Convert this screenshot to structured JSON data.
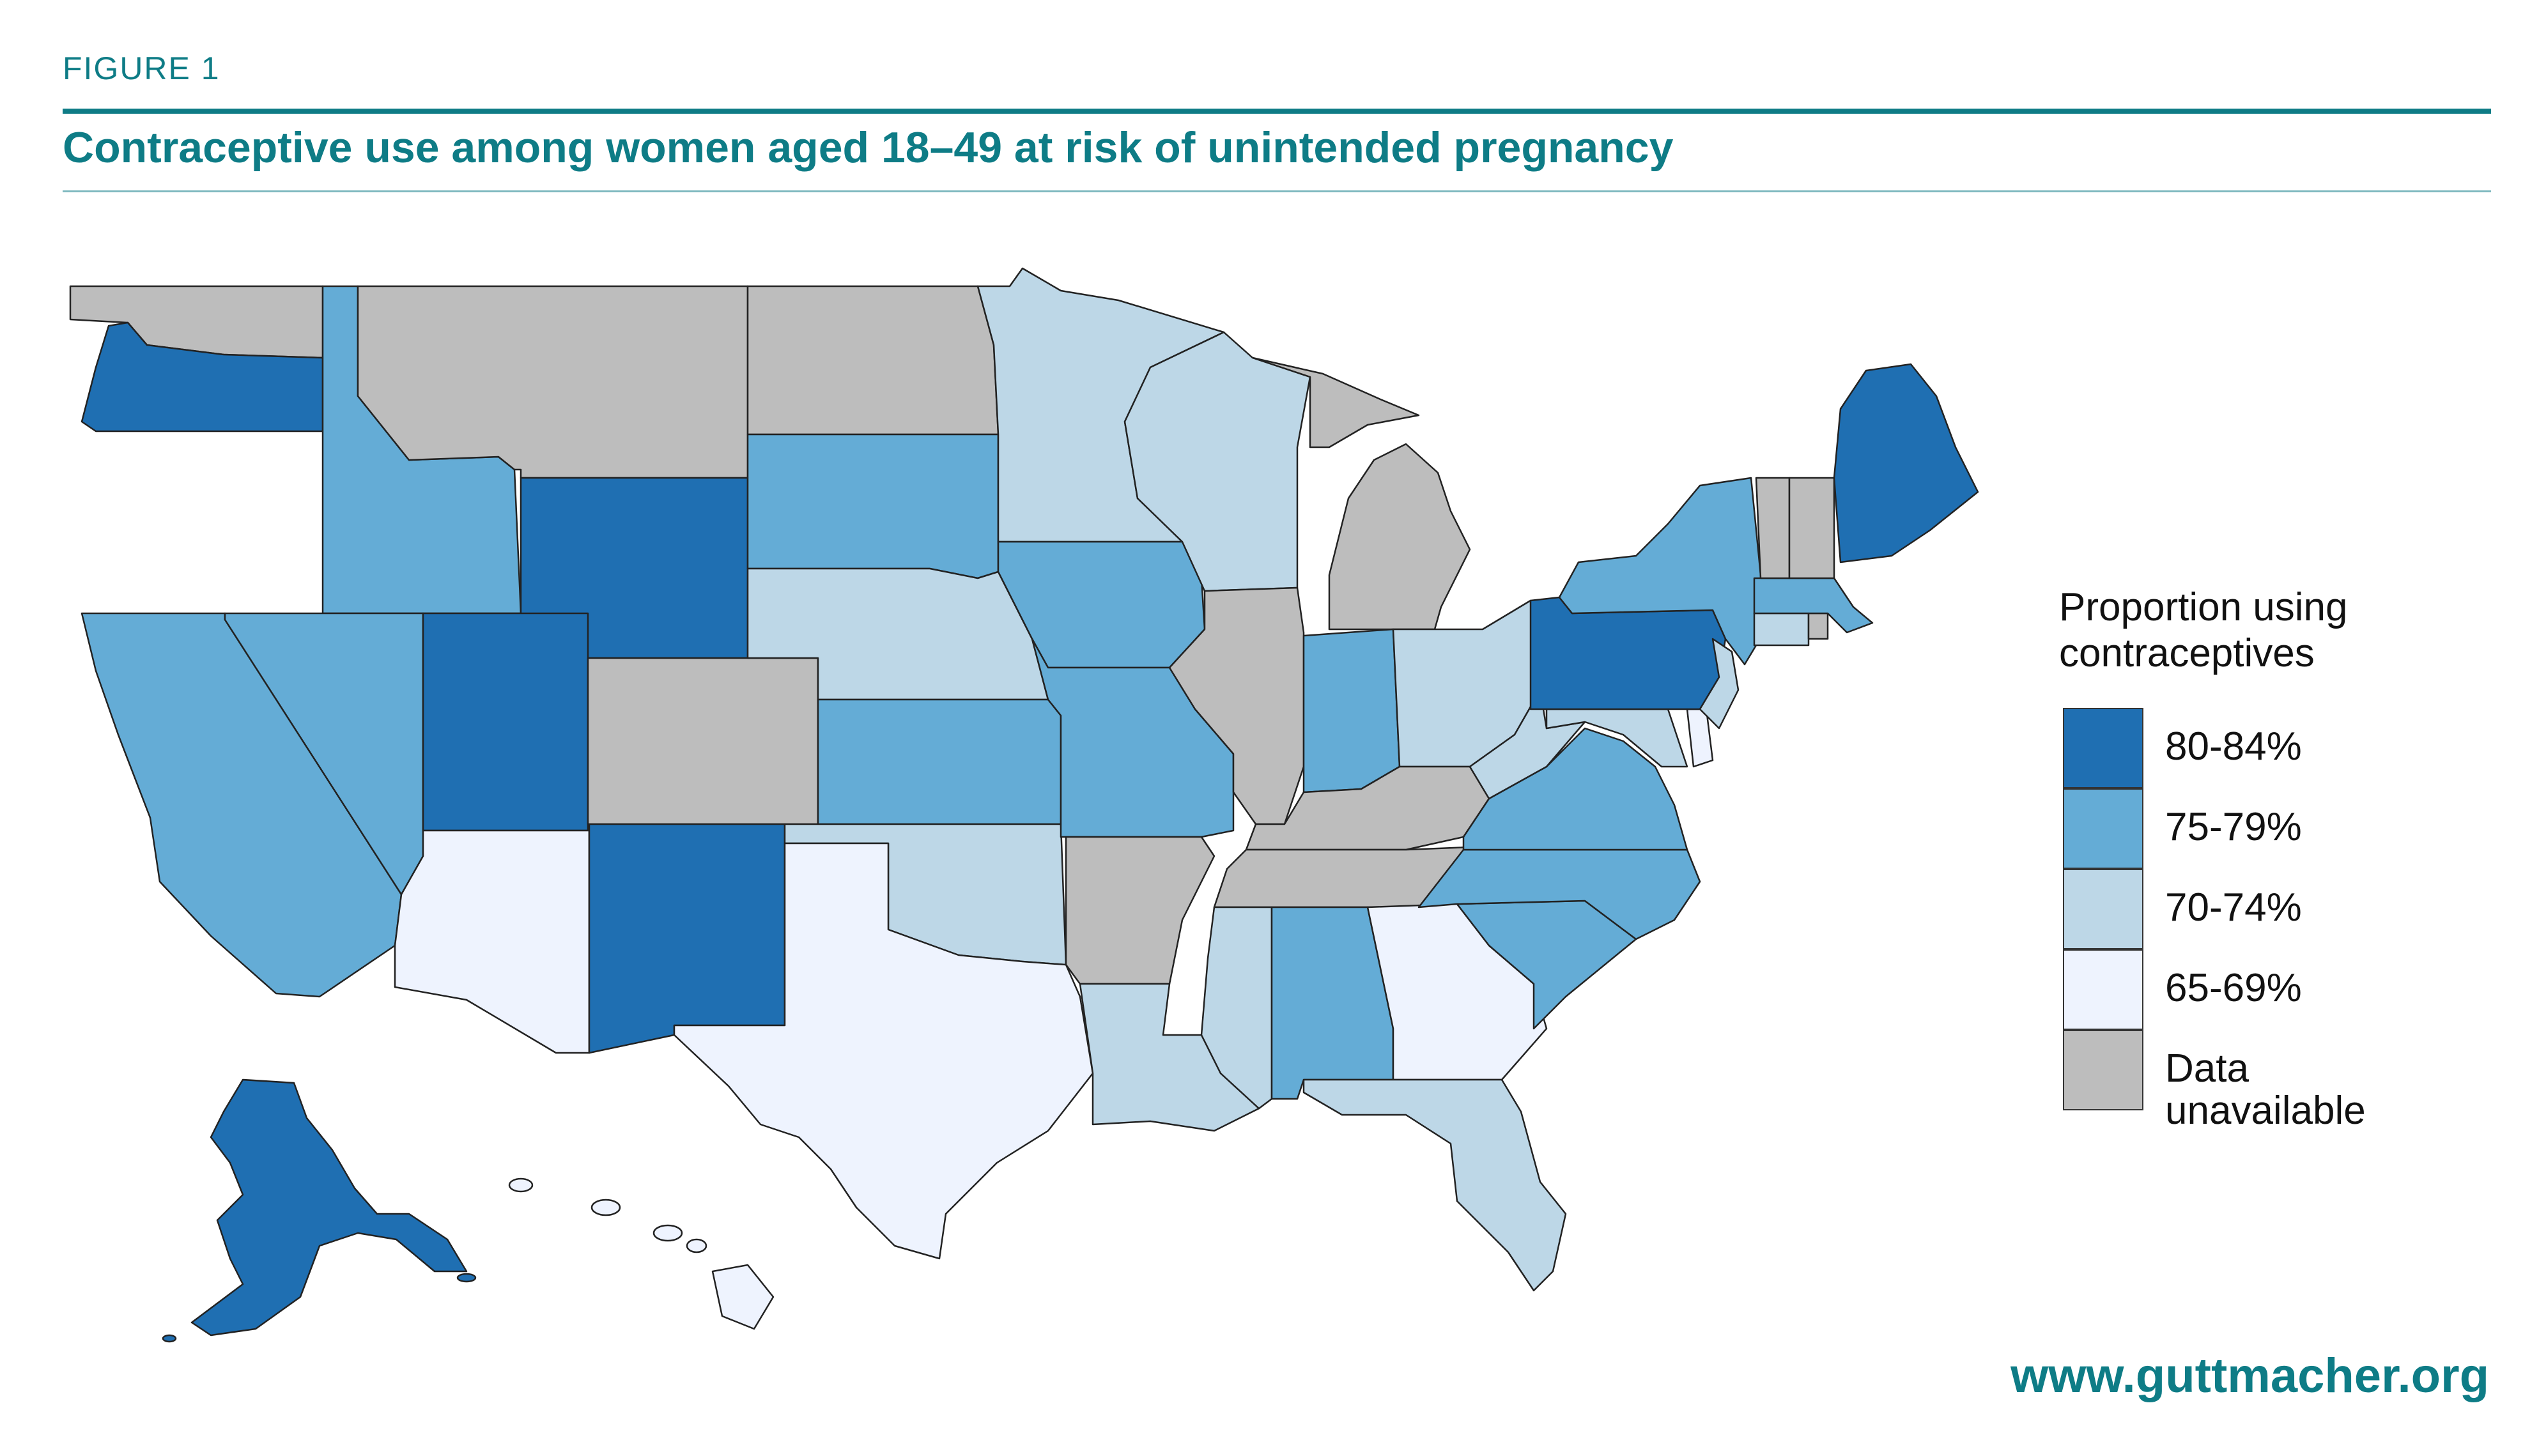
{
  "figure_label": "FIGURE 1",
  "title": "Contraceptive use among women aged 18–49 at risk of unintended pregnancy",
  "legend": {
    "title": "Proportion using contraceptives",
    "items": [
      {
        "key": "c80",
        "label": "80-84%",
        "color": "#1f6fb2"
      },
      {
        "key": "c75",
        "label": "75-79%",
        "color": "#64acd6"
      },
      {
        "key": "c70",
        "label": "70-74%",
        "color": "#bdd7e7"
      },
      {
        "key": "c65",
        "label": "65-69%",
        "color": "#eef3fe"
      },
      {
        "key": "na",
        "label": "Data\nunavailable",
        "color": "#bdbdbd"
      }
    ]
  },
  "states": [
    {
      "name": "Washington",
      "category": "na"
    },
    {
      "name": "Oregon",
      "category": "c80"
    },
    {
      "name": "California",
      "category": "c75"
    },
    {
      "name": "Idaho",
      "category": "c75"
    },
    {
      "name": "Nevada",
      "category": "c75"
    },
    {
      "name": "Montana",
      "category": "na"
    },
    {
      "name": "Wyoming",
      "category": "c80"
    },
    {
      "name": "Utah",
      "category": "c80"
    },
    {
      "name": "Arizona",
      "category": "c65"
    },
    {
      "name": "Colorado",
      "category": "na"
    },
    {
      "name": "New Mexico",
      "category": "c80"
    },
    {
      "name": "North Dakota",
      "category": "na"
    },
    {
      "name": "South Dakota",
      "category": "c75"
    },
    {
      "name": "Nebraska",
      "category": "c70"
    },
    {
      "name": "Kansas",
      "category": "c75"
    },
    {
      "name": "Oklahoma",
      "category": "c70"
    },
    {
      "name": "Texas",
      "category": "c65"
    },
    {
      "name": "Minnesota",
      "category": "c70"
    },
    {
      "name": "Iowa",
      "category": "c75"
    },
    {
      "name": "Missouri",
      "category": "c75"
    },
    {
      "name": "Arkansas",
      "category": "na"
    },
    {
      "name": "Louisiana",
      "category": "c70"
    },
    {
      "name": "Wisconsin",
      "category": "c70"
    },
    {
      "name": "Illinois",
      "category": "na"
    },
    {
      "name": "Michigan",
      "category": "na"
    },
    {
      "name": "Indiana",
      "category": "c75"
    },
    {
      "name": "Ohio",
      "category": "c70"
    },
    {
      "name": "Kentucky",
      "category": "na"
    },
    {
      "name": "Tennessee",
      "category": "na"
    },
    {
      "name": "Mississippi",
      "category": "c70"
    },
    {
      "name": "Alabama",
      "category": "c75"
    },
    {
      "name": "Georgia",
      "category": "c65"
    },
    {
      "name": "Florida",
      "category": "c70"
    },
    {
      "name": "South Carolina",
      "category": "c75"
    },
    {
      "name": "North Carolina",
      "category": "c75"
    },
    {
      "name": "Virginia",
      "category": "c75"
    },
    {
      "name": "West Virginia",
      "category": "c70"
    },
    {
      "name": "Maryland",
      "category": "c70"
    },
    {
      "name": "Delaware",
      "category": "c65"
    },
    {
      "name": "Pennsylvania",
      "category": "c80"
    },
    {
      "name": "New Jersey",
      "category": "c70"
    },
    {
      "name": "New York",
      "category": "c75"
    },
    {
      "name": "Connecticut",
      "category": "c70"
    },
    {
      "name": "Rhode Island",
      "category": "na"
    },
    {
      "name": "Massachusetts",
      "category": "c75"
    },
    {
      "name": "Vermont",
      "category": "na"
    },
    {
      "name": "New Hampshire",
      "category": "na"
    },
    {
      "name": "Maine",
      "category": "c80"
    },
    {
      "name": "Alaska",
      "category": "c80"
    },
    {
      "name": "Hawaii",
      "category": "c65"
    }
  ],
  "footer": "www.guttmacher.org"
}
